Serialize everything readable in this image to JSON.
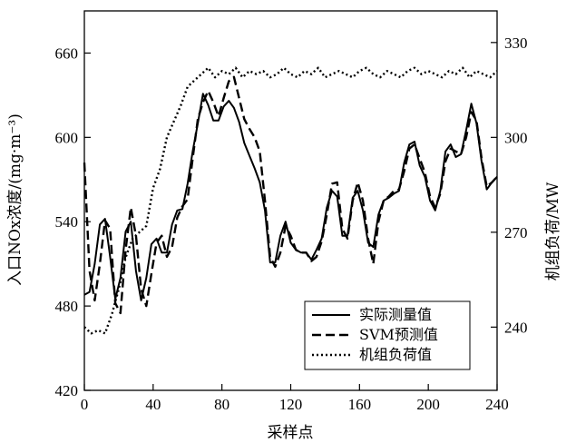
{
  "chart_data": {
    "type": "line",
    "title": "",
    "xlabel": "采样点",
    "ylabel_left": "入口NOx浓度/(mg·m⁻³)",
    "ylabel_right": "机组负荷/MW",
    "xlim": [
      0,
      240
    ],
    "ylim_left": [
      420,
      690
    ],
    "ylim_right": [
      220,
      340
    ],
    "xticks": [
      "0",
      "40",
      "80",
      "120",
      "160",
      "200",
      "240"
    ],
    "yticks_left": [
      "420",
      "480",
      "540",
      "600",
      "660"
    ],
    "yticks_right": [
      "240",
      "270",
      "300",
      "330"
    ],
    "grid": false,
    "legend_position": "bottom-right",
    "series": [
      {
        "name": "实际测量值",
        "axis": "left",
        "style": "solid",
        "x": [
          0,
          3,
          6,
          9,
          12,
          15,
          18,
          21,
          24,
          27,
          30,
          33,
          36,
          39,
          42,
          45,
          48,
          51,
          54,
          57,
          60,
          63,
          66,
          69,
          72,
          75,
          78,
          81,
          84,
          87,
          90,
          93,
          96,
          99,
          102,
          105,
          108,
          111,
          114,
          117,
          120,
          123,
          126,
          129,
          132,
          135,
          138,
          141,
          144,
          147,
          150,
          153,
          156,
          159,
          162,
          165,
          168,
          171,
          174,
          177,
          180,
          183,
          186,
          189,
          192,
          195,
          198,
          201,
          204,
          207,
          210,
          213,
          216,
          219,
          222,
          225,
          228,
          231,
          234,
          237,
          240
        ],
        "values": [
          488,
          490,
          510,
          538,
          542,
          515,
          485,
          500,
          533,
          540,
          505,
          484,
          500,
          524,
          528,
          518,
          518,
          538,
          548,
          549,
          567,
          590,
          610,
          631,
          623,
          612,
          612,
          622,
          626,
          621,
          611,
          596,
          587,
          578,
          568,
          548,
          511,
          511,
          530,
          540,
          525,
          520,
          518,
          518,
          513,
          520,
          528,
          550,
          562,
          558,
          530,
          530,
          557,
          562,
          548,
          525,
          522,
          545,
          555,
          557,
          560,
          562,
          582,
          595,
          597,
          580,
          572,
          555,
          548,
          562,
          590,
          595,
          586,
          588,
          605,
          624,
          610,
          583,
          563,
          568,
          572
        ]
      },
      {
        "name": "SVM预测值",
        "axis": "left",
        "style": "dashed",
        "x": [
          0,
          3,
          6,
          9,
          12,
          15,
          18,
          21,
          24,
          27,
          30,
          33,
          36,
          39,
          42,
          45,
          48,
          51,
          54,
          57,
          60,
          63,
          66,
          69,
          72,
          75,
          78,
          81,
          84,
          87,
          90,
          93,
          96,
          99,
          102,
          105,
          108,
          111,
          114,
          117,
          120,
          123,
          126,
          129,
          132,
          135,
          138,
          141,
          144,
          147,
          150,
          153,
          156,
          159,
          162,
          165,
          168,
          171,
          174,
          177,
          180,
          183,
          186,
          189,
          192,
          195,
          198,
          201,
          204,
          207,
          210,
          213,
          216,
          219,
          222,
          225,
          228,
          231,
          234,
          237,
          240
        ],
        "values": [
          582,
          505,
          484,
          510,
          541,
          535,
          482,
          475,
          520,
          550,
          530,
          492,
          480,
          503,
          525,
          530,
          515,
          522,
          543,
          551,
          556,
          585,
          613,
          625,
          633,
          625,
          615,
          628,
          640,
          643,
          628,
          613,
          606,
          600,
          590,
          555,
          515,
          508,
          518,
          537,
          530,
          520,
          518,
          518,
          512,
          515,
          526,
          545,
          567,
          568,
          535,
          528,
          555,
          568,
          555,
          528,
          510,
          540,
          555,
          558,
          562,
          563,
          576,
          592,
          595,
          585,
          575,
          558,
          550,
          560,
          583,
          592,
          590,
          588,
          600,
          618,
          612,
          585,
          565,
          568,
          572
        ]
      },
      {
        "name": "机组负荷值",
        "axis": "right",
        "style": "dotted",
        "x": [
          0,
          4,
          8,
          12,
          16,
          20,
          24,
          28,
          32,
          36,
          40,
          44,
          48,
          52,
          56,
          60,
          64,
          68,
          72,
          76,
          80,
          84,
          88,
          92,
          96,
          100,
          104,
          108,
          112,
          116,
          120,
          124,
          128,
          132,
          136,
          140,
          144,
          148,
          152,
          156,
          160,
          164,
          168,
          172,
          176,
          180,
          184,
          188,
          192,
          196,
          200,
          204,
          208,
          212,
          216,
          220,
          224,
          228,
          232,
          236,
          240
        ],
        "values": [
          240,
          238,
          239,
          238,
          244,
          252,
          262,
          268,
          270,
          272,
          284,
          290,
          300,
          305,
          310,
          316,
          318,
          320,
          322,
          319,
          321,
          320,
          322,
          319,
          321,
          320,
          321,
          319,
          320,
          322,
          320,
          319,
          321,
          320,
          322,
          319,
          320,
          321,
          320,
          319,
          321,
          322,
          320,
          319,
          321,
          320,
          319,
          321,
          322,
          320,
          321,
          320,
          319,
          321,
          320,
          322,
          319,
          321,
          320,
          319,
          321
        ]
      }
    ]
  }
}
